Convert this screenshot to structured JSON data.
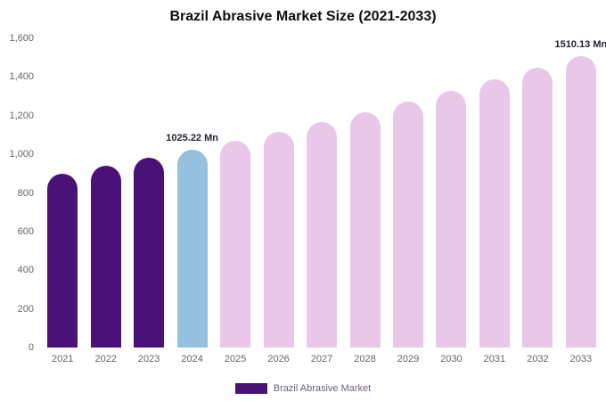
{
  "title": "Brazil Abrasive Market Size (2021-2033)",
  "legend": {
    "label": "Brazil Abrasive Market",
    "swatch_color": "#4a1179"
  },
  "chart_data": {
    "type": "bar",
    "title": "Brazil Abrasive Market Size (2021-2033)",
    "xlabel": "",
    "ylabel": "",
    "unit": "Mn",
    "categories": [
      "2021",
      "2022",
      "2023",
      "2024",
      "2025",
      "2026",
      "2027",
      "2028",
      "2029",
      "2030",
      "2031",
      "2032",
      "2033"
    ],
    "values": [
      901,
      941,
      982,
      1025.22,
      1070,
      1117,
      1167,
      1218,
      1272,
      1328,
      1386,
      1447,
      1510.13
    ],
    "ylim": [
      0,
      1600
    ],
    "y_tick_labels": [
      "1,600",
      "1,400",
      "1,200",
      "1,000",
      "800",
      "600",
      "400",
      "200",
      "0"
    ],
    "grid": false,
    "legend_position": "bottom",
    "colors": {
      "dark": "#4a1179",
      "highlight": "#93c1df",
      "light": "#e8c7e9"
    },
    "color_keys": [
      "dark",
      "dark",
      "dark",
      "highlight",
      "light",
      "light",
      "light",
      "light",
      "light",
      "light",
      "light",
      "light",
      "light"
    ],
    "annotations": [
      {
        "category": "2024",
        "text": "1025.22 Mn"
      },
      {
        "category": "2033",
        "text": "1510.13 Mn"
      }
    ]
  }
}
